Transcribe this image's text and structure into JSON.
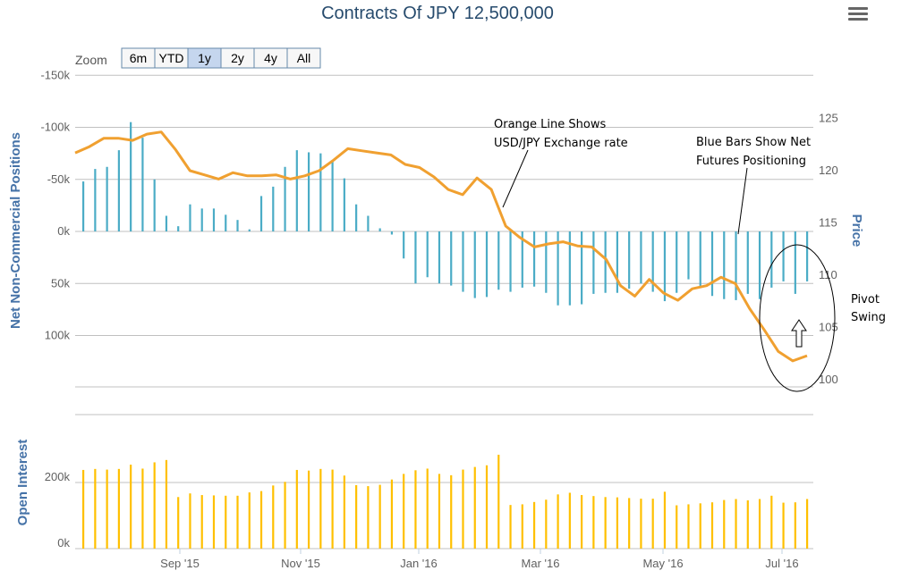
{
  "chart_data": {
    "title": "Contracts Of JPY 12,500,000",
    "type": "bar+line",
    "zoom": {
      "label": "Zoom",
      "buttons": [
        "6m",
        "YTD",
        "1y",
        "2y",
        "4y",
        "All"
      ],
      "selected": "1y"
    },
    "x_labels": [
      "Sep '15",
      "Nov '15",
      "Jan '16",
      "Mar '16",
      "May '16",
      "Jul '16"
    ],
    "top_panel": {
      "left_axis_title": "Net Non-Commercial Positions",
      "left_ticks": [
        "-150k",
        "-100k",
        "-50k",
        "0k",
        "50k",
        "100k"
      ],
      "right_axis_title": "Price",
      "right_ticks": [
        "125",
        "120",
        "115",
        "110",
        "105",
        "100"
      ],
      "net_positions_k": [
        -48,
        -60,
        -62,
        -78,
        -105,
        -90,
        -50,
        -15,
        -5,
        -26,
        -22,
        -22,
        -16,
        -11,
        -2,
        -34,
        -43,
        -62,
        -78,
        -76,
        -75,
        -67,
        -51,
        -26,
        -15,
        -3,
        3,
        26,
        50,
        44,
        50,
        52,
        58,
        64,
        63,
        56,
        58,
        54,
        53,
        59,
        71,
        71,
        70,
        60,
        59,
        59,
        55,
        50,
        58,
        67,
        59,
        46,
        53,
        62,
        65,
        66,
        60,
        65,
        54,
        48,
        60,
        48
      ],
      "usd_jpy_price": [
        121.7,
        122.3,
        123.1,
        123.1,
        122.9,
        123.5,
        123.7,
        122.0,
        120.0,
        119.6,
        119.2,
        119.8,
        119.5,
        119.5,
        119.6,
        119.2,
        119.5,
        120.0,
        121.0,
        122.1,
        121.9,
        121.7,
        121.5,
        120.6,
        120.3,
        119.4,
        118.2,
        117.7,
        119.3,
        118.2,
        114.7,
        113.6,
        112.7,
        113.0,
        113.2,
        112.8,
        112.7,
        111.5,
        109.0,
        108.0,
        109.6,
        108.3,
        107.6,
        108.7,
        109.0,
        109.8,
        109.2,
        106.8,
        104.8,
        102.7,
        101.8,
        102.3
      ]
    },
    "bottom_panel": {
      "axis_title": "Open Interest",
      "ticks": [
        "200k",
        "0k"
      ],
      "open_interest_k": [
        238,
        241,
        239,
        241,
        254,
        242,
        261,
        268,
        156,
        167,
        162,
        161,
        160,
        160,
        170,
        174,
        191,
        202,
        238,
        236,
        241,
        239,
        221,
        192,
        189,
        193,
        209,
        226,
        237,
        242,
        226,
        222,
        239,
        247,
        252,
        284,
        132,
        134,
        141,
        148,
        164,
        169,
        162,
        159,
        156,
        155,
        153,
        151,
        151,
        172,
        131,
        134,
        137,
        140,
        147,
        150,
        146,
        150,
        160,
        139,
        140,
        150
      ]
    },
    "annotations": {
      "orange_note": [
        "Orange Line Shows",
        "USD/JPY Exchange rate"
      ],
      "blue_note": [
        "Blue Bars Show Net",
        "Futures Positioning"
      ],
      "pivot_note": [
        "Pivot",
        "Swing"
      ]
    },
    "colors": {
      "bars": "#4bacc6",
      "line": "#f0a030",
      "open_interest": "#ffc000"
    }
  }
}
